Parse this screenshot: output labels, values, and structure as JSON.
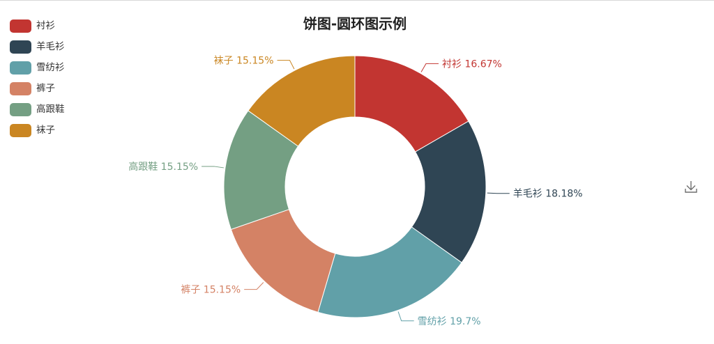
{
  "chart_data": {
    "type": "pie",
    "subtype": "donut",
    "title": "饼图-圆环图示例",
    "categories": [
      "衬衫",
      "羊毛衫",
      "雪纺衫",
      "裤子",
      "高跟鞋",
      "袜子"
    ],
    "values": [
      16.67,
      18.18,
      19.7,
      15.15,
      15.15,
      15.15
    ],
    "data_labels": [
      "衬衫 16.67%",
      "羊毛衫 18.18%",
      "雪纺衫 19.7%",
      "裤子 15.15%",
      "高跟鞋 15.15%",
      "袜子 15.15%"
    ],
    "colors": [
      "#c23531",
      "#2f4554",
      "#61a0a8",
      "#d48265",
      "#749f83",
      "#ca8622"
    ],
    "legend_position": "top-left",
    "start_angle": "12 o'clock, clockwise"
  },
  "toolbox": {
    "save_icon": "download-icon"
  }
}
